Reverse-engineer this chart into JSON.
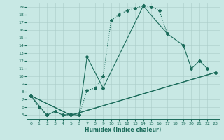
{
  "background_color": "#c8e8e4",
  "grid_color": "#aaccc8",
  "line_color": "#1a6b5a",
  "xlabel": "Humidex (Indice chaleur)",
  "xlim": [
    -0.5,
    23.5
  ],
  "ylim": [
    4.5,
    19.5
  ],
  "xticks": [
    0,
    1,
    2,
    3,
    4,
    5,
    6,
    7,
    8,
    9,
    10,
    11,
    12,
    13,
    14,
    15,
    16,
    17,
    18,
    19,
    20,
    21,
    22,
    23
  ],
  "yticks": [
    5,
    6,
    7,
    8,
    9,
    10,
    11,
    12,
    13,
    14,
    15,
    16,
    17,
    18,
    19
  ],
  "curve1_x": [
    0,
    1,
    2,
    3,
    4,
    5,
    6,
    7,
    8,
    9,
    10,
    11,
    12,
    13,
    14,
    15,
    16,
    17
  ],
  "curve1_y": [
    7.5,
    6,
    5,
    5.5,
    5,
    5.1,
    5,
    8.2,
    8.5,
    10.0,
    17.2,
    18.0,
    18.5,
    18.8,
    19.1,
    19.0,
    18.5,
    15.5
  ],
  "curve2_x": [
    0,
    2,
    3,
    4,
    5,
    6,
    7,
    9,
    14,
    17,
    19,
    20,
    21,
    22
  ],
  "curve2_y": [
    7.5,
    5,
    5.5,
    5,
    5.1,
    5,
    12.5,
    8.5,
    19.1,
    15.5,
    14.0,
    11.0,
    12.0,
    11.0
  ],
  "curve3_x": [
    0,
    5,
    23
  ],
  "curve3_y": [
    7.5,
    5.0,
    10.5
  ],
  "curve4_x": [
    0,
    5,
    23
  ],
  "curve4_y": [
    7.5,
    5.0,
    10.5
  ]
}
